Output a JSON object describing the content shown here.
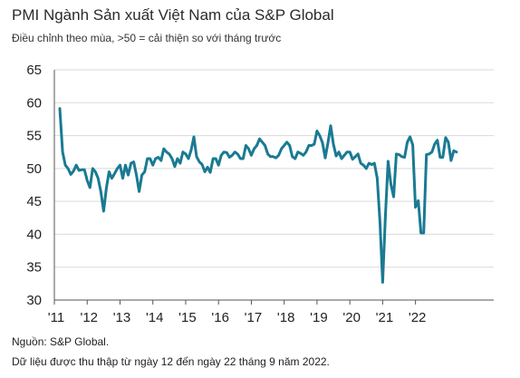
{
  "header": {
    "title": "PMI Ngành Sản xuất Việt Nam của S&P Global",
    "subtitle": "Điều chỉnh theo mùa, >50 = cải thiện so với tháng trước"
  },
  "footer": {
    "source": "Nguồn: S&P Global.",
    "note": "Dữ liệu được thu thập từ ngày 12 đến ngày 22 tháng 9 năm 2022."
  },
  "colors": {
    "line": "#1a7a92",
    "grid": "#d9d9d9",
    "axis": "#555555"
  },
  "chart_data": {
    "type": "line",
    "title": "PMI Ngành Sản xuất Việt Nam của S&P Global",
    "xlabel": "",
    "ylabel": "",
    "ylim": [
      30,
      65
    ],
    "yticks": [
      30,
      35,
      40,
      45,
      50,
      55,
      60,
      65
    ],
    "xticks": [
      "'11",
      "'12",
      "'13",
      "'14",
      "'15",
      "'16",
      "'17",
      "'18",
      "'19",
      "'20",
      "'21",
      "'22"
    ],
    "grid": true,
    "x_start": "2011-03",
    "frequency": "monthly",
    "series": [
      {
        "values": [
          59.1,
          52.5,
          50.5,
          50.0,
          49.1,
          49.6,
          50.5,
          49.7,
          49.8,
          49.8,
          48.2,
          47.1,
          50.0,
          49.5,
          48.5,
          46.5,
          43.5,
          47.0,
          49.5,
          48.5,
          49.2,
          50.0,
          50.5,
          48.5,
          50.5,
          49.0,
          50.8,
          51.0,
          49.0,
          46.5,
          49.0,
          49.5,
          51.5,
          51.5,
          50.5,
          51.5,
          51.7,
          51.2,
          53.0,
          52.5,
          52.2,
          51.5,
          50.3,
          51.5,
          50.8,
          52.5,
          52.2,
          51.5,
          52.8,
          54.8,
          51.8,
          51.0,
          50.6,
          49.5,
          50.2,
          49.4,
          51.5,
          51.5,
          50.5,
          52.0,
          52.5,
          52.4,
          51.7,
          52.0,
          52.5,
          52.2,
          51.5,
          51.5,
          53.5,
          53.0,
          52.0,
          53.0,
          53.5,
          54.5,
          54.0,
          53.5,
          52.2,
          51.8,
          51.8,
          51.6,
          52.0,
          53.0,
          53.5,
          54.0,
          53.5,
          51.8,
          51.5,
          52.5,
          52.3,
          52.0,
          52.5,
          53.5,
          53.5,
          53.7,
          55.7,
          55.0,
          53.9,
          51.6,
          53.9,
          56.5,
          53.7,
          51.9,
          52.5,
          51.5,
          52.0,
          52.5,
          52.5,
          51.4,
          51.8,
          52.2,
          50.8,
          50.5,
          50.0,
          50.8,
          50.6,
          50.8,
          48.5,
          41.9,
          32.7,
          42.7,
          51.1,
          47.6,
          45.7,
          52.2,
          52.1,
          51.8,
          51.7,
          54.0,
          54.8,
          53.6,
          44.1,
          45.1,
          40.2,
          40.2,
          52.1,
          52.2,
          52.5,
          53.7,
          54.3,
          51.7,
          51.7,
          54.7,
          54.0,
          51.2,
          52.7,
          52.5
        ]
      }
    ]
  }
}
